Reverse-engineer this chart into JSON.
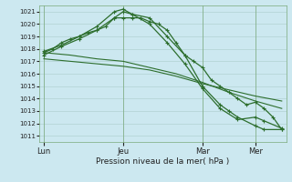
{
  "bg_color": "#cce8f0",
  "grid_color": "#aacccc",
  "line_color": "#2d6e2d",
  "marker_color": "#2d6e2d",
  "xlabel_text": "Pression niveau de la mer( hPa )",
  "ylim": [
    1010.5,
    1021.5
  ],
  "yticks": [
    1011,
    1012,
    1013,
    1014,
    1015,
    1016,
    1017,
    1018,
    1019,
    1020,
    1021
  ],
  "xtick_labels": [
    "Lun",
    "Jeu",
    "Mar",
    "Mer"
  ],
  "xtick_positions": [
    0,
    9,
    18,
    24
  ],
  "xlim": [
    -0.5,
    27.5
  ],
  "series": [
    {
      "x": [
        0,
        1,
        2,
        3,
        4,
        5,
        6,
        7,
        8,
        9,
        10,
        11,
        12,
        13,
        14,
        15,
        16,
        17,
        18,
        19,
        20,
        21,
        22,
        23,
        24,
        25,
        26,
        27
      ],
      "y": [
        1017.7,
        1018.0,
        1018.5,
        1018.8,
        1019.0,
        1019.3,
        1019.5,
        1019.8,
        1020.5,
        1020.5,
        1020.5,
        1020.5,
        1020.2,
        1020.0,
        1019.5,
        1018.5,
        1017.5,
        1017.0,
        1016.5,
        1015.5,
        1015.0,
        1014.5,
        1014.0,
        1013.5,
        1013.7,
        1013.2,
        1012.5,
        1011.5
      ],
      "marker": true,
      "lw": 0.9
    },
    {
      "x": [
        0,
        2,
        4,
        6,
        8,
        9,
        10,
        12,
        14,
        16,
        18,
        20,
        21,
        22,
        24,
        25,
        27
      ],
      "y": [
        1017.8,
        1018.3,
        1019.0,
        1019.8,
        1021.0,
        1021.2,
        1020.8,
        1020.5,
        1019.0,
        1017.5,
        1015.0,
        1013.5,
        1013.0,
        1012.5,
        1011.8,
        1011.5,
        1011.5
      ],
      "marker": true,
      "lw": 0.9
    },
    {
      "x": [
        0,
        2,
        4,
        6,
        8,
        9,
        10,
        12,
        14,
        16,
        18,
        20,
        22,
        24,
        25,
        27
      ],
      "y": [
        1017.5,
        1018.2,
        1018.8,
        1019.5,
        1020.5,
        1021.0,
        1020.8,
        1020.0,
        1018.5,
        1016.8,
        1014.8,
        1013.2,
        1012.3,
        1012.5,
        1012.2,
        1011.6
      ],
      "marker": true,
      "lw": 0.9
    },
    {
      "x": [
        0,
        3,
        6,
        9,
        12,
        15,
        18,
        21,
        24,
        27
      ],
      "y": [
        1017.7,
        1017.5,
        1017.2,
        1017.0,
        1016.5,
        1016.0,
        1015.3,
        1014.5,
        1013.8,
        1013.2
      ],
      "marker": false,
      "lw": 0.8
    },
    {
      "x": [
        0,
        3,
        6,
        9,
        12,
        15,
        18,
        21,
        24,
        27
      ],
      "y": [
        1017.2,
        1017.0,
        1016.8,
        1016.6,
        1016.3,
        1015.8,
        1015.2,
        1014.7,
        1014.2,
        1013.8
      ],
      "marker": false,
      "lw": 0.8
    }
  ]
}
